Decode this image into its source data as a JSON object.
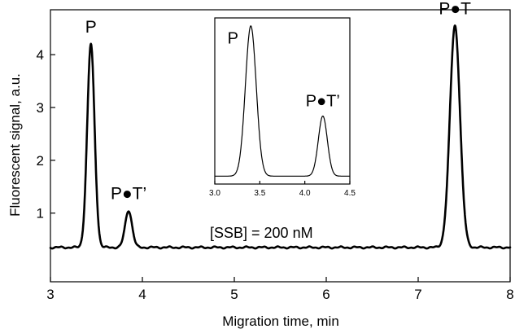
{
  "chart_data": [
    {
      "type": "line",
      "title": "",
      "xlabel": "Migration time, min",
      "ylabel": "Fluorescent signal, a.u.",
      "xlim": [
        3,
        8
      ],
      "ylim": [
        -0.3,
        4.85
      ],
      "x_ticks": [
        "3",
        "4",
        "5",
        "6",
        "7",
        "8"
      ],
      "y_ticks": [
        "1",
        "2",
        "3",
        "4"
      ],
      "x_tick_values": [
        3,
        4,
        5,
        6,
        7,
        8
      ],
      "y_tick_values": [
        1,
        2,
        3,
        4
      ],
      "grid": false,
      "baseline": 0.35,
      "peaks": [
        {
          "label": "P",
          "x": 3.44,
          "height": 4.2,
          "width": 0.04
        },
        {
          "label": "P●T’",
          "x": 3.85,
          "height": 1.05,
          "width": 0.038
        },
        {
          "label": "P●T",
          "x": 7.4,
          "height": 4.55,
          "width": 0.055
        }
      ],
      "annotations": [
        "[SSB] = 200 nM"
      ]
    },
    {
      "type": "line",
      "role": "inset",
      "title": "",
      "xlabel": "",
      "ylabel": "",
      "xlim": [
        3.0,
        4.5
      ],
      "ylim": [
        0,
        1.05
      ],
      "x_ticks": [
        "3.0",
        "3.5",
        "4.0",
        "4.5"
      ],
      "x_tick_values": [
        3.0,
        3.5,
        4.0,
        4.5
      ],
      "grid": false,
      "baseline": 0.05,
      "peaks": [
        {
          "label": "P",
          "x": 3.4,
          "height": 1.0,
          "width": 0.06
        },
        {
          "label": "P●T’",
          "x": 4.2,
          "height": 0.43,
          "width": 0.05
        }
      ]
    }
  ]
}
